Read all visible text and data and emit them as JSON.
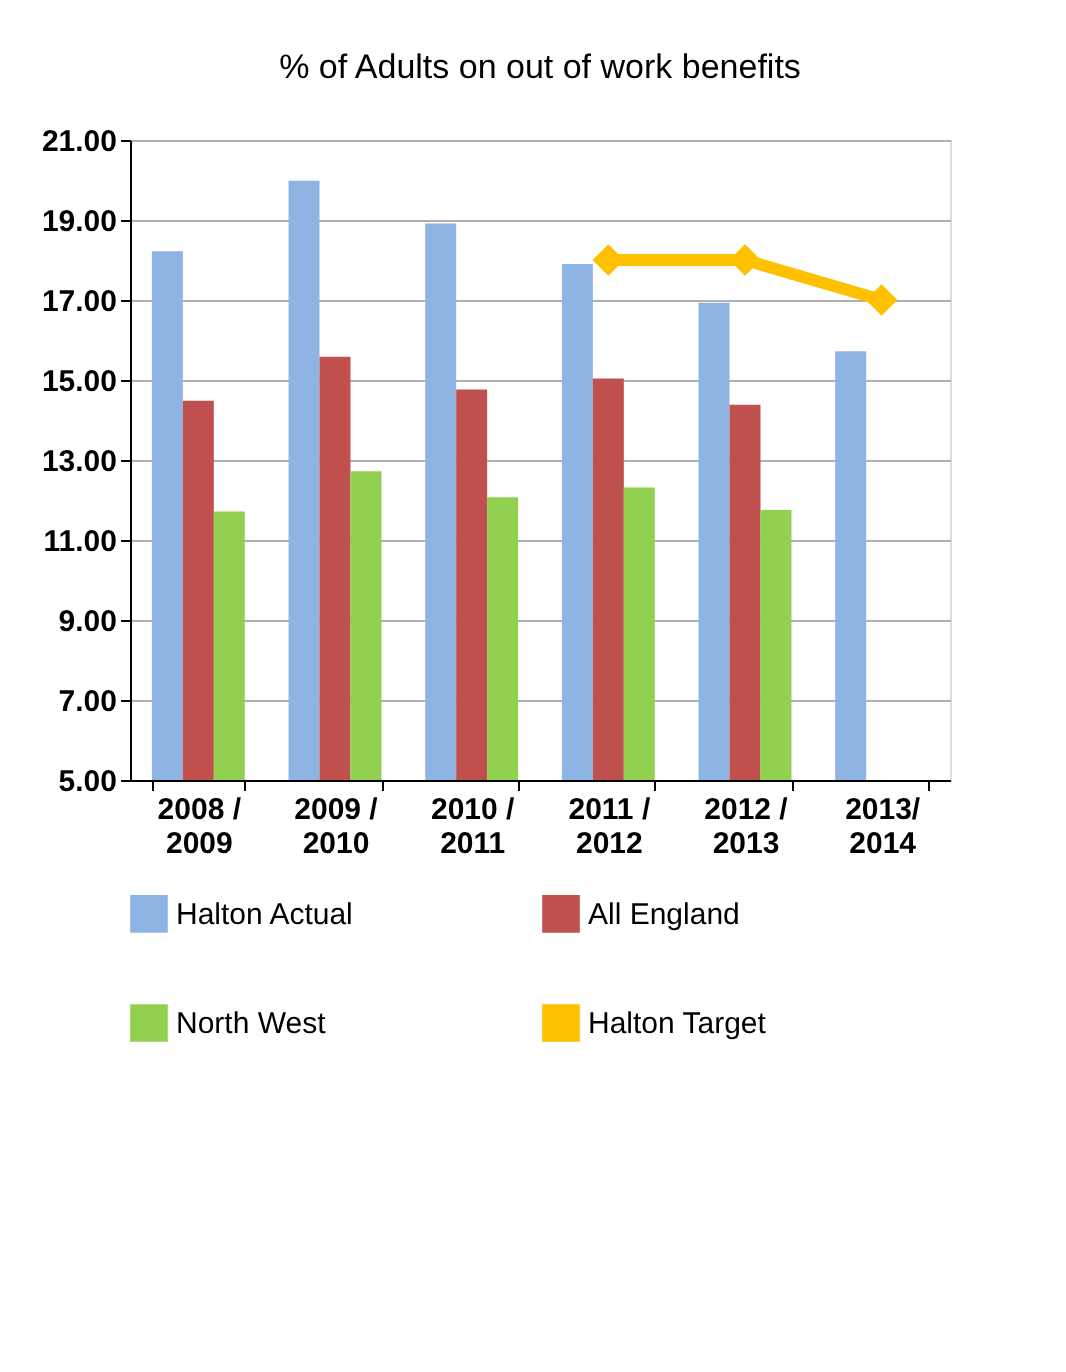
{
  "chart_data": {
    "type": "bar",
    "title": "% of Adults on out of work benefits",
    "categories": [
      "2008 / 2009",
      "2009 / 2010",
      "2010 / 2011",
      "2011 / 2012",
      "2012 / 2013",
      "2013/ 2014"
    ],
    "series": [
      {
        "name": "Halton Actual",
        "color": "#8eb4e3",
        "values": [
          18.22,
          19.98,
          18.91,
          17.9,
          16.93,
          15.72
        ]
      },
      {
        "name": "All England",
        "color": "#c0504d",
        "values": [
          14.48,
          15.58,
          14.76,
          15.04,
          14.38,
          null
        ]
      },
      {
        "name": "North West",
        "color": "#92d050",
        "values": [
          11.71,
          12.72,
          12.07,
          12.31,
          11.75,
          null
        ]
      },
      {
        "name": "Halton Target",
        "color": "#ffc000",
        "type": "line",
        "marker": "diamond",
        "values": [
          null,
          null,
          null,
          18,
          18,
          17
        ]
      }
    ],
    "ylim": [
      5,
      21
    ],
    "yticks": [
      {
        "value": 5,
        "label": "5.00"
      },
      {
        "value": 7,
        "label": "7.00"
      },
      {
        "value": 9,
        "label": "9.00"
      },
      {
        "value": 11,
        "label": "11.00"
      },
      {
        "value": 13,
        "label": "13.00"
      },
      {
        "value": 15,
        "label": "15.00"
      },
      {
        "value": 17,
        "label": "17.00"
      },
      {
        "value": 19,
        "label": "19.00"
      },
      {
        "value": 21,
        "label": "21.00"
      }
    ],
    "grid": "y",
    "legend": "bottom"
  }
}
